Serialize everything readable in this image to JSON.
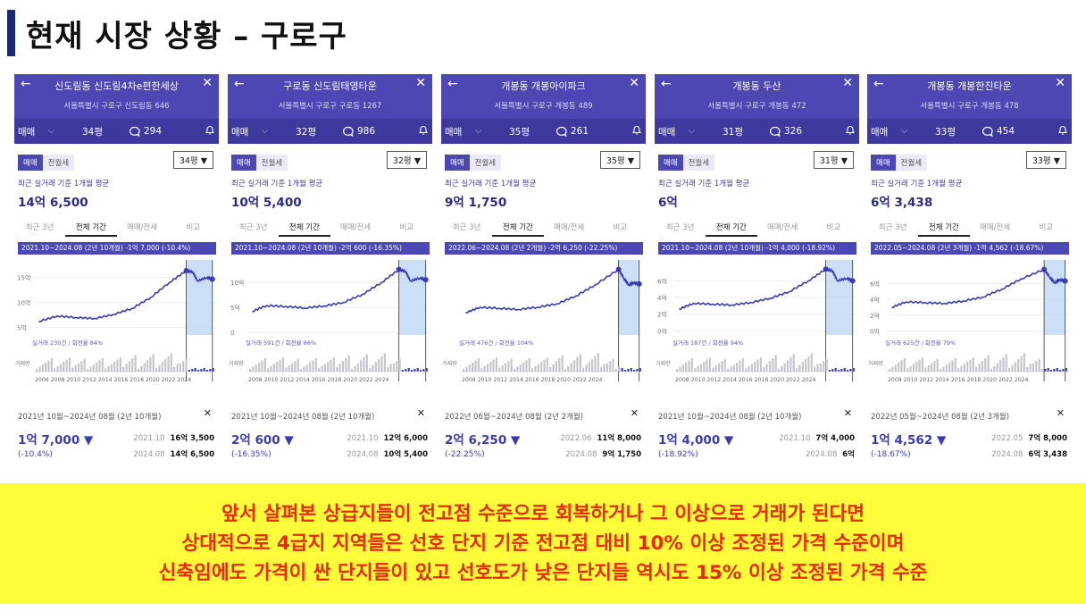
{
  "slide": {
    "title": "현재 시장 상황 – 구로구"
  },
  "colors": {
    "header": "#4c47b2",
    "line": "#3b3bb0",
    "banner": "#fdfc3a",
    "text_red": "#e8290b"
  },
  "icons": {
    "back": "arrow-left-icon",
    "close": "close-icon",
    "comment": "comment-icon",
    "bell": "bell-icon",
    "chevron": "chevron-down-icon"
  },
  "common": {
    "sale": "매매",
    "jeonse": "전월세",
    "avg_label": "최근 실거래 기준 1개월 평균",
    "range_tabs": [
      "최근 3년",
      "전체 기간",
      "매매/전세",
      "비교"
    ],
    "chevron": "⌵",
    "dropdown": "▼",
    "back": "←",
    "close": "✕",
    "bell": "🔔",
    "x_mark": "✕"
  },
  "panels": [
    {
      "name": "신도림동 신도림4차e편한세상",
      "address": "서울특별시 구로구 신도림동 646",
      "size": "34평",
      "size_select": "34평 ▼",
      "comments": "294",
      "avg_price": "14억 6,500",
      "banner": "2021.10~2024.08 (2년 10개월)    -1억 7,000 (-10.4%)",
      "yticks": [
        "15억",
        "10억",
        "5억"
      ],
      "vol_label": "실거래 230건 / 회전율 84%",
      "vol_axis": "거래량",
      "xticks": "2006 2008 2010 2012 2014 2016 2018 2020 2022 2024",
      "period": "2021년 10월~2024년 08월 (2년 10개월)",
      "change": "1억 7,000 ▼",
      "pct": "(-10.4%)",
      "r1_date": "2021.10",
      "r1_val": "16억 3,500",
      "r2_date": "2024.08",
      "r2_val": "14억 6,500",
      "chart_data": {
        "type": "line",
        "title": "",
        "x": [
          2006,
          2008,
          2010,
          2012,
          2014,
          2016,
          2018,
          2020,
          2021.8,
          2022.5,
          2023,
          2024,
          2024.6
        ],
        "values": [
          6.2,
          7.3,
          7.0,
          6.8,
          7.6,
          8.8,
          11.0,
          14.0,
          16.35,
          16.1,
          14.3,
          15.0,
          14.65
        ],
        "ylim": [
          3.5,
          18.5
        ],
        "yticks": [
          5,
          10,
          15
        ],
        "xlim": [
          2005.5,
          2025
        ],
        "highlight": [
          2021.8,
          2024.6
        ],
        "grid": true,
        "legend": "none"
      }
    },
    {
      "name": "구로동 신도림태영타운",
      "address": "서울특별시 구로구 구로동 1267",
      "size": "32평",
      "size_select": "32평 ▼",
      "comments": "986",
      "avg_price": "10억 5,400",
      "banner": "2021.10~2024.08 (2년 10개월)    -2억 600 (-16.35%)",
      "yticks": [
        "10억",
        "5억",
        "0"
      ],
      "vol_label": "실거래 591건 / 회전율 86%",
      "vol_axis": "거래량",
      "xticks": "2008 2010 2012 2014 2016 2018 2020 2022 2024",
      "period": "2021년 10월~2024년 08월 (2년 10개월)",
      "change": "2억 600 ▼",
      "pct": "(-16.35%)",
      "r1_date": "2021.10",
      "r1_val": "12억 6,000",
      "r2_date": "2024.08",
      "r2_val": "10억 5,400",
      "chart_data": {
        "type": "line",
        "title": "",
        "x": [
          2006.5,
          2008,
          2010,
          2012,
          2014,
          2016,
          2018,
          2020,
          2021.8,
          2022.5,
          2023,
          2024,
          2024.6
        ],
        "values": [
          4.2,
          5.4,
          5.2,
          4.9,
          5.3,
          6.0,
          7.6,
          10.0,
          12.6,
          12.2,
          10.3,
          10.9,
          10.54
        ],
        "ylim": [
          -0.5,
          14.5
        ],
        "yticks": [
          0,
          5,
          10
        ],
        "xlim": [
          2006,
          2025
        ],
        "highlight": [
          2021.8,
          2024.6
        ],
        "grid": true,
        "legend": "none"
      }
    },
    {
      "name": "개봉동 개봉아이파크",
      "address": "서울특별시 구로구 개봉동 489",
      "size": "35평",
      "size_select": "35평 ▼",
      "comments": "261",
      "avg_price": "9억 1,750",
      "banner": "2022.06~2024.08 (2년 2개월)    -2억 6,250 (-22.25%)",
      "yticks": [],
      "vol_label": "실거래 476건 / 회전율 104%",
      "vol_axis": "거래량",
      "xticks": "2008 2010 2012 2014 2016 2018 2020 2022 2024",
      "period": "2022년 06월~2024년 08월 (2년 2개월)",
      "change": "2억 6,250 ▼",
      "pct": "(-22.25%)",
      "r1_date": "2022.06",
      "r1_val": "11억 8,000",
      "r2_date": "2024.08",
      "r2_val": "9억 1,750",
      "chart_data": {
        "type": "line",
        "title": "",
        "x": [
          2006.5,
          2008,
          2010,
          2012,
          2014,
          2016,
          2018,
          2020,
          2022.45,
          2023,
          2023.5,
          2024,
          2024.6
        ],
        "values": [
          4.0,
          5.0,
          4.8,
          4.6,
          5.0,
          5.6,
          7.0,
          9.0,
          11.8,
          10.2,
          9.0,
          9.4,
          9.18
        ],
        "ylim": [
          0,
          13.5
        ],
        "yticks": [],
        "xlim": [
          2006,
          2025
        ],
        "highlight": [
          2022.45,
          2024.6
        ],
        "grid": true,
        "legend": "none"
      }
    },
    {
      "name": "개봉동 두산",
      "address": "서울특별시 구로구 개봉동 472",
      "size": "31평",
      "size_select": "31평 ▼",
      "comments": "326",
      "avg_price": "6억",
      "banner": "2021.10~2024.08 (2년 10개월)    -1억 4,000 (-18.92%)",
      "yticks": [
        "6억",
        "4억",
        "2억",
        "0억"
      ],
      "vol_label": "실거래 187건 / 회전율 94%",
      "vol_axis": "거래량",
      "xticks": "2008 2010 2012 2014 2016 2018 2020 2022 2024",
      "period": "2021년 10월~2024년 08월 (2년 10개월)",
      "change": "1억 4,000 ▼",
      "pct": "(-18.92%)",
      "r1_date": "2021.10",
      "r1_val": "7억 4,000",
      "r2_date": "2024.08",
      "r2_val": "6억",
      "chart_data": {
        "type": "line",
        "title": "",
        "x": [
          2006.5,
          2008,
          2010,
          2012,
          2014,
          2016,
          2018,
          2020,
          2021.8,
          2022.5,
          2023,
          2024,
          2024.6
        ],
        "values": [
          2.6,
          3.3,
          3.2,
          3.1,
          3.4,
          3.9,
          4.7,
          6.0,
          7.4,
          7.2,
          6.0,
          6.3,
          6.0
        ],
        "ylim": [
          -0.5,
          8.5
        ],
        "yticks": [
          0,
          2,
          4,
          6
        ],
        "xlim": [
          2006,
          2025
        ],
        "highlight": [
          2021.8,
          2024.6
        ],
        "grid": true,
        "legend": "none"
      }
    },
    {
      "name": "개봉동 개봉한진타운",
      "address": "서울특별시 구로구 개봉동 478",
      "size": "33평",
      "size_select": "33평 ▼",
      "comments": "454",
      "avg_price": "6억 3,438",
      "banner": "2022.05~2024.08 (2년 3개월)    -1억 4,562 (-18.67%)",
      "yticks": [
        "6억",
        "4억",
        "2억",
        "0억"
      ],
      "vol_label": "실거래 625건 / 회전율 79%",
      "vol_axis": "거래량",
      "xticks": "2008 2010 2012 2014 2016 2018 2020 2022 2024",
      "period": "2022년 05월~2024년 08월 (2년 3개월)",
      "change": "1억 4,562 ▼",
      "pct": "(-18.67%)",
      "r1_date": "2022.05",
      "r1_val": "7억 8,000",
      "r2_date": "2024.08",
      "r2_val": "6억 3,438",
      "chart_data": {
        "type": "line",
        "title": "",
        "x": [
          2006.5,
          2008,
          2010,
          2012,
          2014,
          2016,
          2018,
          2020,
          2022.4,
          2023,
          2023.5,
          2024,
          2024.6
        ],
        "values": [
          3.0,
          3.7,
          3.6,
          3.5,
          3.8,
          4.3,
          5.3,
          6.6,
          7.8,
          6.8,
          6.1,
          6.5,
          6.34
        ],
        "ylim": [
          -0.5,
          9.0
        ],
        "yticks": [
          0,
          2,
          4,
          6
        ],
        "xlim": [
          2006,
          2025
        ],
        "highlight": [
          2022.4,
          2024.6
        ],
        "grid": true,
        "legend": "none"
      }
    }
  ],
  "conclusion": {
    "line1": "앞서 살펴본 상급지들이 전고점 수준으로 회복하거나 그 이상으로 거래가 된다면",
    "line2": "상대적으로 4급지 지역들은 선호 단지 기준 전고점 대비 10% 이상 조정된 가격 수준이며",
    "line3": "신축임에도 가격이 싼 단지들이 있고 선호도가 낮은 단지들 역시도 15% 이상 조정된 가격 수준"
  }
}
